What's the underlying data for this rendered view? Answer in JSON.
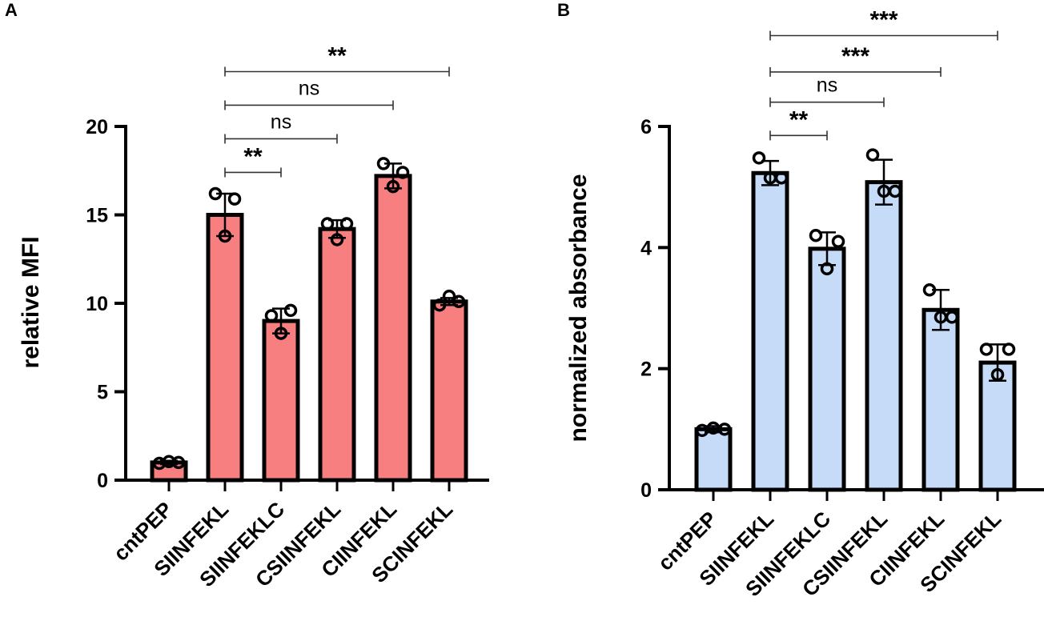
{
  "chart_data": [
    {
      "type": "bar",
      "panel": "A",
      "ylabel": "relative  MFI",
      "ylim": [
        0,
        20
      ],
      "yticks": [
        0,
        5,
        10,
        15,
        20
      ],
      "bar_color": "#F87F7F",
      "categories": [
        "cntPEP",
        "SIINFEKL",
        "SIINFEKLC",
        "CSIINFEKL",
        "CIINFEKL",
        "SCINFEKL"
      ],
      "values": [
        1.0,
        15.0,
        9.0,
        14.2,
        17.2,
        10.1
      ],
      "errors": [
        0.1,
        1.2,
        0.7,
        0.5,
        0.7,
        0.2
      ],
      "points": [
        [
          0.95,
          1.05,
          1.0
        ],
        [
          16.2,
          13.8,
          15.9
        ],
        [
          9.3,
          8.3,
          9.6
        ],
        [
          14.5,
          13.6,
          14.5
        ],
        [
          17.9,
          16.6,
          17.4
        ],
        [
          9.9,
          10.4,
          10.1
        ]
      ],
      "comparisons": [
        {
          "from": 1,
          "to": 2,
          "label": "**",
          "y": 17.4
        },
        {
          "from": 1,
          "to": 3,
          "label": "ns",
          "y": 19.3
        },
        {
          "from": 1,
          "to": 4,
          "label": "ns",
          "y": 21.2
        },
        {
          "from": 1,
          "to": 5,
          "label": "**",
          "y": 23.1
        }
      ]
    },
    {
      "type": "bar",
      "panel": "B",
      "ylabel": "normalized absorbance",
      "ylim": [
        0,
        6
      ],
      "yticks": [
        0,
        2,
        4,
        6
      ],
      "bar_color": "#C6DBF7",
      "categories": [
        "cntPEP",
        "SIINFEKL",
        "SIINFEKLC",
        "CSIINFEKL",
        "CIINFEKL",
        "SCINFEKL"
      ],
      "values": [
        1.0,
        5.23,
        3.98,
        5.08,
        2.97,
        2.1
      ],
      "errors": [
        0.05,
        0.2,
        0.27,
        0.37,
        0.33,
        0.3
      ],
      "points": [
        [
          0.98,
          1.02,
          1.0
        ],
        [
          5.48,
          5.15,
          5.15
        ],
        [
          4.2,
          3.65,
          4.1
        ],
        [
          5.53,
          4.93,
          4.93
        ],
        [
          3.3,
          2.85,
          2.85
        ],
        [
          2.32,
          1.9,
          2.32
        ]
      ],
      "comparisons": [
        {
          "from": 1,
          "to": 2,
          "label": "**",
          "y": 5.85
        },
        {
          "from": 1,
          "to": 3,
          "label": "ns",
          "y": 6.4
        },
        {
          "from": 1,
          "to": 4,
          "label": "***",
          "y": 6.9
        },
        {
          "from": 1,
          "to": 5,
          "label": "***",
          "y": 7.5
        }
      ]
    }
  ]
}
